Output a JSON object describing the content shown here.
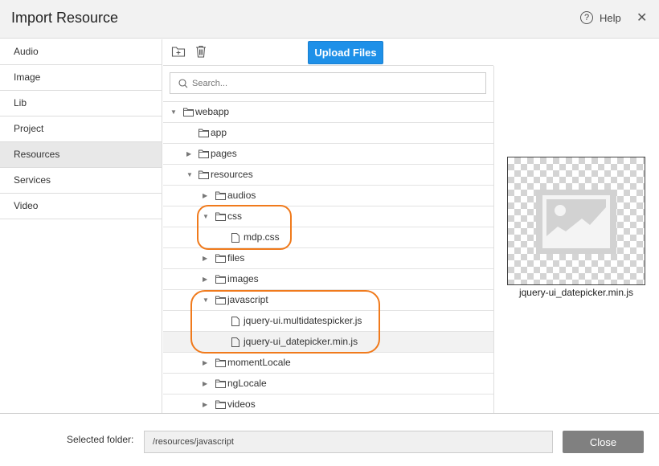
{
  "header": {
    "title": "Import Resource",
    "help_label": "Help",
    "help_icon": "question-circle-icon",
    "close_icon": "close-icon"
  },
  "sidebar": {
    "items": [
      {
        "label": "Audio"
      },
      {
        "label": "Image"
      },
      {
        "label": "Lib"
      },
      {
        "label": "Project"
      },
      {
        "label": "Resources",
        "active": true
      },
      {
        "label": "Services"
      },
      {
        "label": "Video"
      }
    ]
  },
  "toolbar": {
    "new_folder_icon": "folder-plus-icon",
    "delete_icon": "trash-icon",
    "upload_label": "Upload Files",
    "accent": "#1e90e8"
  },
  "search": {
    "placeholder": "Search...",
    "value": ""
  },
  "tree": [
    {
      "label": "webapp",
      "level": 0,
      "type": "folder",
      "state": "expanded"
    },
    {
      "label": "app",
      "level": 1,
      "type": "folder",
      "state": "none"
    },
    {
      "label": "pages",
      "level": 1,
      "type": "folder",
      "state": "collapsed"
    },
    {
      "label": "resources",
      "level": 1,
      "type": "folder",
      "state": "expanded"
    },
    {
      "label": "audios",
      "level": 2,
      "type": "folder",
      "state": "collapsed"
    },
    {
      "label": "css",
      "level": 2,
      "type": "folder",
      "state": "expanded"
    },
    {
      "label": "mdp.css",
      "level": 3,
      "type": "file"
    },
    {
      "label": "files",
      "level": 2,
      "type": "folder",
      "state": "collapsed"
    },
    {
      "label": "images",
      "level": 2,
      "type": "folder",
      "state": "collapsed"
    },
    {
      "label": "javascript",
      "level": 2,
      "type": "folder",
      "state": "expanded"
    },
    {
      "label": "jquery-ui.multidatespicker.js",
      "level": 3,
      "type": "file"
    },
    {
      "label": "jquery-ui_datepicker.min.js",
      "level": 3,
      "type": "file",
      "selected": true
    },
    {
      "label": "momentLocale",
      "level": 2,
      "type": "folder",
      "state": "collapsed"
    },
    {
      "label": "ngLocale",
      "level": 2,
      "type": "folder",
      "state": "collapsed"
    },
    {
      "label": "videos",
      "level": 2,
      "type": "folder",
      "state": "collapsed"
    }
  ],
  "preview": {
    "filename": "jquery-ui_datepicker.min.js",
    "icon": "image-placeholder-icon"
  },
  "footer": {
    "selected_folder_label": "Selected folder:",
    "selected_folder_value": "/resources/javascript",
    "close_label": "Close"
  },
  "annotation_color": "#f07a1c"
}
